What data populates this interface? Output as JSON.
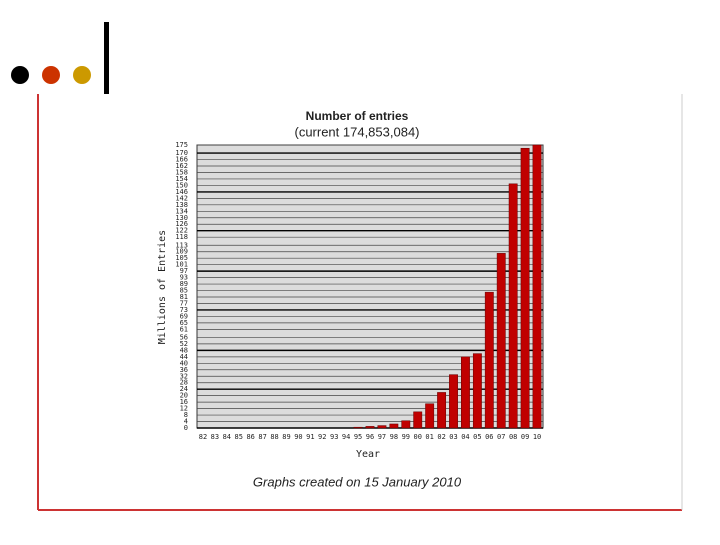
{
  "chart_data": {
    "type": "bar",
    "title": "Number of entries",
    "subtitle": "(current 174,853,084)",
    "y_label": "Millions of Entries",
    "x_label": "Year",
    "note": "Graphs created on 15 January 2010",
    "categories": [
      "82",
      "83",
      "84",
      "85",
      "86",
      "87",
      "88",
      "89",
      "90",
      "91",
      "92",
      "93",
      "94",
      "95",
      "96",
      "97",
      "98",
      "99",
      "00",
      "01",
      "02",
      "03",
      "04",
      "05",
      "06",
      "07",
      "08",
      "09",
      "10"
    ],
    "values": [
      0,
      0,
      0,
      0,
      0,
      0,
      0,
      0,
      0,
      0,
      0,
      0,
      0,
      0.5,
      1,
      1.5,
      2.5,
      4.5,
      10,
      15,
      22,
      33,
      44,
      46,
      84,
      108,
      151,
      173,
      175
    ],
    "color": "#c00000",
    "ylim": [
      0,
      175
    ],
    "yticks": [
      0,
      4,
      8,
      12,
      16,
      20,
      24,
      28,
      32,
      36,
      40,
      44,
      48,
      52,
      56,
      61,
      65,
      69,
      73,
      77,
      81,
      85,
      89,
      93,
      97,
      101,
      105,
      109,
      113,
      118,
      122,
      126,
      130,
      134,
      138,
      142,
      146,
      150,
      154,
      158,
      162,
      166,
      170,
      175
    ],
    "grid": true
  }
}
